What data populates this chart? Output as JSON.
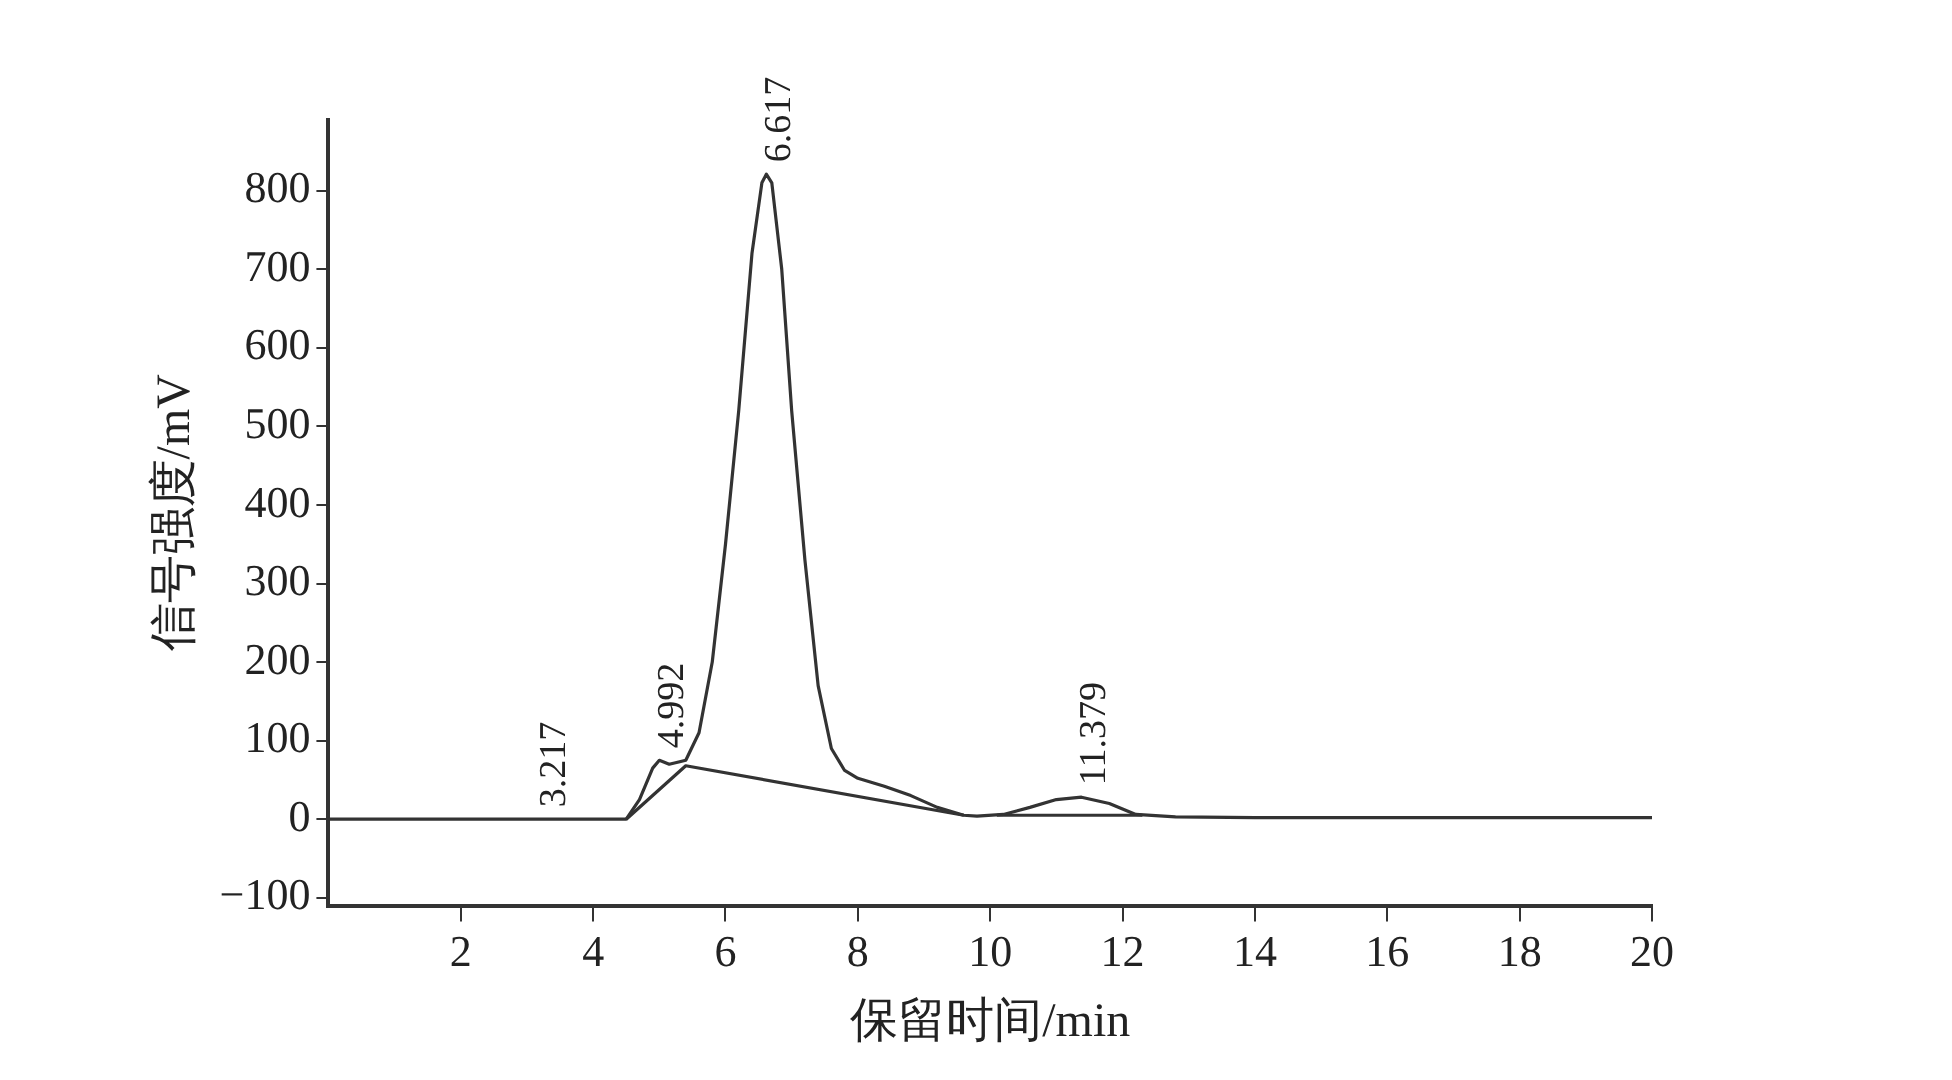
{
  "chart_data": {
    "type": "line",
    "xlabel": "保留时间/min",
    "ylabel": "信号强度/mV",
    "xlim": [
      0,
      20
    ],
    "xticks": [
      2,
      4,
      6,
      8,
      10,
      12,
      14,
      16,
      18,
      20
    ],
    "ylim": [
      -110,
      890
    ],
    "yticks": [
      -100,
      0,
      100,
      200,
      300,
      400,
      500,
      600,
      700,
      800
    ],
    "grid": false,
    "legend": false,
    "marker": "none",
    "line_style": "solid",
    "series": [
      {
        "color": "#333333",
        "x": [
          0,
          4.5,
          4.7,
          4.9,
          5.0,
          5.15,
          5.4,
          5.6,
          5.8,
          6.0,
          6.2,
          6.4,
          6.55,
          6.617,
          6.7,
          6.85,
          7.0,
          7.2,
          7.4,
          7.6,
          7.8,
          8.0,
          8.4,
          8.8,
          9.2,
          9.6,
          9.8,
          10.2,
          10.6,
          11.0,
          11.379,
          11.8,
          12.2,
          12.8,
          14,
          20
        ],
        "values": [
          0,
          0,
          25,
          65,
          75,
          70,
          75,
          110,
          200,
          350,
          520,
          720,
          810,
          821,
          810,
          700,
          520,
          330,
          170,
          90,
          62,
          52,
          42,
          30,
          15,
          5,
          4,
          6,
          15,
          25,
          28,
          20,
          6,
          3,
          2,
          2
        ]
      },
      {
        "color": "#333333",
        "x": [
          4.5,
          5.4,
          9.6,
          9.8,
          10.1,
          12.3
        ],
        "values": [
          0,
          68,
          5,
          null,
          5,
          5
        ]
      }
    ],
    "annotations": [
      {
        "text": "3.217",
        "x": 3.217,
        "y": 0
      },
      {
        "text": "4.992",
        "x": 4.992,
        "y": 75
      },
      {
        "text": "6.617",
        "x": 6.617,
        "y": 821
      },
      {
        "text": "11.379",
        "x": 11.379,
        "y": 28
      }
    ]
  }
}
